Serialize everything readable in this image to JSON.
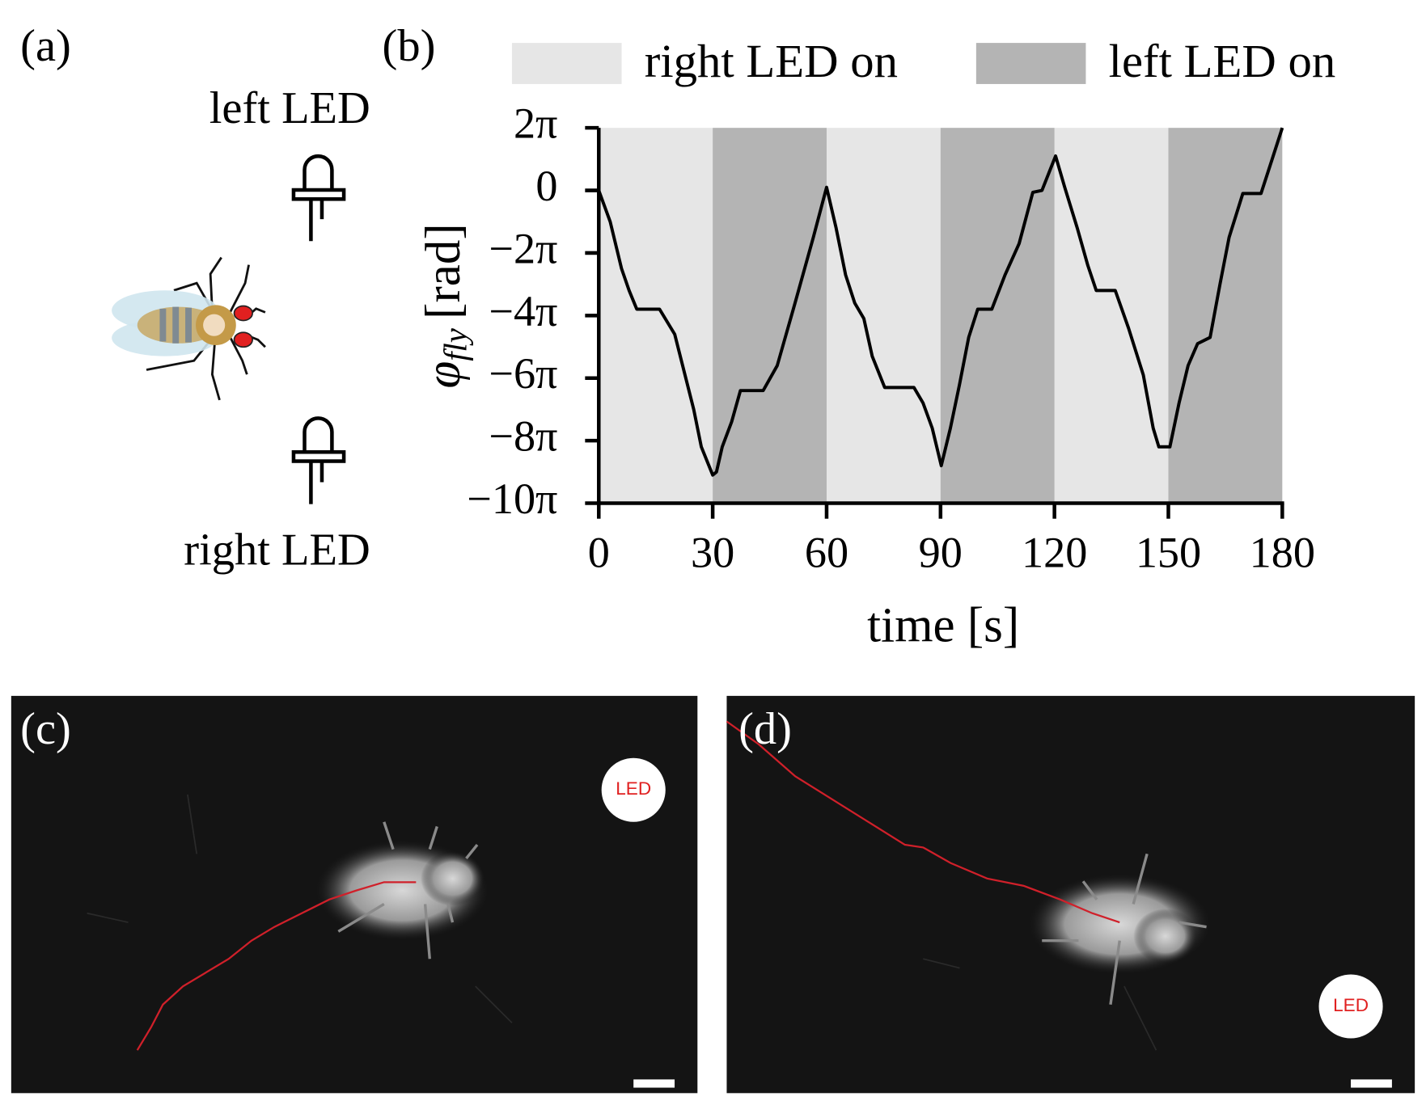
{
  "panels": {
    "a": {
      "label": "(a)",
      "top_label": "left LED",
      "bottom_label": "right LED"
    },
    "b": {
      "label": "(b)"
    },
    "c": {
      "label": "(c)",
      "led_text": "LED"
    },
    "d": {
      "label": "(d)",
      "led_text": "LED"
    }
  },
  "chart_data": {
    "type": "line",
    "xlabel": "time [s]",
    "ylabel": {
      "symbol": "φ",
      "subscript": "fly",
      "unit": "[rad]"
    },
    "xlim": [
      0,
      180
    ],
    "xticks": [
      0,
      30,
      60,
      90,
      120,
      150,
      180
    ],
    "ylim": [
      -10,
      2
    ],
    "yticks": [
      {
        "value": 2,
        "label": "2π"
      },
      0,
      {
        "value": -2,
        "label": "−2π"
      },
      {
        "value": -4,
        "label": "−4π"
      },
      {
        "value": -6,
        "label": "−6π"
      },
      {
        "value": -8,
        "label": "−8π"
      },
      {
        "value": -10,
        "label": "−10π"
      }
    ],
    "bands": [
      {
        "name": "right LED on",
        "color": "#e6e6e6",
        "spans": [
          [
            0,
            30
          ],
          [
            60,
            90
          ],
          [
            120,
            150
          ]
        ]
      },
      {
        "name": "left LED on",
        "color": "#b4b4b4",
        "spans": [
          [
            30,
            60
          ],
          [
            90,
            120
          ],
          [
            150,
            180
          ]
        ]
      }
    ],
    "color": "#000000",
    "x": [
      0,
      3,
      6,
      8,
      10,
      16,
      20,
      25,
      27,
      30,
      31,
      32.5,
      35,
      37.3,
      43.3,
      47,
      51.7,
      56.5,
      60,
      62.5,
      65,
      67.4,
      69.8,
      72,
      75.3,
      83,
      85.4,
      87.8,
      90.2,
      92.6,
      95,
      97.4,
      99.8,
      103.5,
      107,
      110.7,
      114.3,
      116.7,
      120.3,
      122.7,
      126,
      128.8,
      131,
      136,
      139.5,
      143.4,
      146,
      147.5,
      150.4,
      152.8,
      155.2,
      157.7,
      161,
      163.6,
      166,
      169.6,
      174.4,
      176.8,
      180
    ],
    "values": [
      0,
      -1,
      -2.5,
      -3.2,
      -3.8,
      -3.8,
      -4.6,
      -7.0,
      -8.2,
      -9.1,
      -9.0,
      -8.2,
      -7.4,
      -6.4,
      -6.4,
      -5.6,
      -3.6,
      -1.5,
      0.1,
      -1.2,
      -2.7,
      -3.6,
      -4.1,
      -5.3,
      -6.3,
      -6.3,
      -6.8,
      -7.6,
      -8.8,
      -7.6,
      -6.2,
      -4.7,
      -3.8,
      -3.8,
      -2.7,
      -1.7,
      -0.06,
      0,
      1.1,
      0.1,
      -1.2,
      -2.4,
      -3.2,
      -3.2,
      -4.4,
      -5.9,
      -7.6,
      -8.2,
      -8.2,
      -6.8,
      -5.6,
      -4.9,
      -4.7,
      -3.0,
      -1.5,
      -0.1,
      -0.1,
      0.8,
      2
    ]
  }
}
